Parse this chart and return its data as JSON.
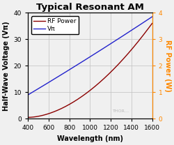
{
  "title": "Typical Resonant AM",
  "xlabel": "Wavelength (nm)",
  "ylabel_left": "Half-Wave Voltage (Vπ)",
  "ylabel_right": "RF Power (W)",
  "x_min": 400,
  "x_max": 1600,
  "y_left_min": 0,
  "y_left_max": 40,
  "y_right_min": 0,
  "y_right_max": 4,
  "bg_color": "#f0f0f0",
  "plot_bg_color": "#f0f0f0",
  "grid_color": "#c0c0c0",
  "title_color": "#000000",
  "left_axis_color": "#000000",
  "right_axis_color": "#ff8800",
  "xlabel_color": "#000000",
  "vpi_color": "#2222cc",
  "rf_color": "#8b0000",
  "legend_labels": [
    "RF Power",
    "Vπ"
  ],
  "watermark": "THOR…",
  "title_fontsize": 9.5,
  "axis_label_fontsize": 7,
  "tick_fontsize": 6.5,
  "legend_fontsize": 6.5
}
